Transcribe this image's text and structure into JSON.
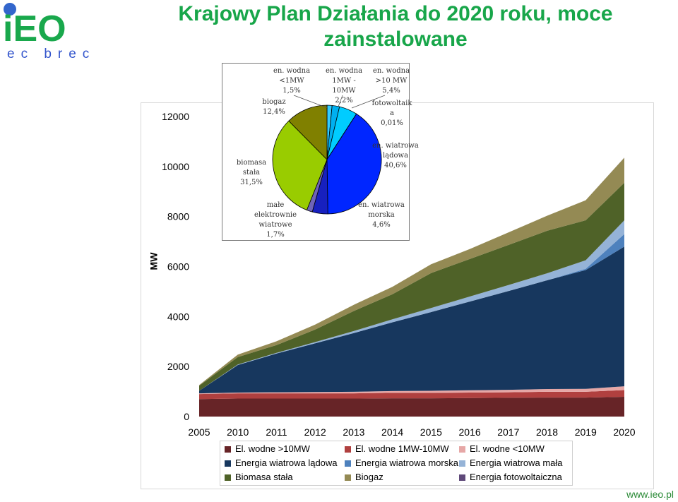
{
  "header": {
    "title": "Krajowy Plan Działania do 2020 roku, moce zainstalowane",
    "logo_main": "iEO",
    "logo_sub": "ec brec"
  },
  "footer": {
    "url": "www.ieo.pl"
  },
  "chart_data": [
    {
      "type": "area",
      "stacked": true,
      "ylabel": "MW",
      "ylim": [
        0,
        12000
      ],
      "yticks": [
        "0",
        "2000",
        "4000",
        "6000",
        "8000",
        "10000",
        "12000"
      ],
      "categories": [
        "2005",
        "2010",
        "2011",
        "2012",
        "2013",
        "2014",
        "2015",
        "2016",
        "2017",
        "2018",
        "2019",
        "2020"
      ],
      "legend_position": "bottom",
      "series": [
        {
          "name": "El. wodne >10MW",
          "color": "#672427",
          "values": [
            700,
            720,
            720,
            720,
            720,
            730,
            730,
            740,
            750,
            760,
            760,
            790
          ]
        },
        {
          "name": "El. wodne 1MW-10MW",
          "color": "#b0403f",
          "values": [
            200,
            210,
            210,
            210,
            210,
            220,
            220,
            220,
            220,
            230,
            230,
            270
          ]
        },
        {
          "name": "El. wodne <10MW",
          "color": "#e6a7a6",
          "values": [
            30,
            30,
            40,
            50,
            60,
            70,
            80,
            90,
            100,
            110,
            120,
            150
          ]
        },
        {
          "name": "Energia wiatrowa lądowa",
          "color": "#17375e",
          "values": [
            100,
            1100,
            1550,
            1950,
            2350,
            2750,
            3150,
            3550,
            3950,
            4350,
            4750,
            5590
          ]
        },
        {
          "name": "Energia wiatrowa morska",
          "color": "#4e81bd",
          "values": [
            0,
            0,
            0,
            0,
            0,
            0,
            0,
            0,
            0,
            0,
            50,
            500
          ]
        },
        {
          "name": "Energia wiatrowa mała",
          "color": "#95b3d7",
          "values": [
            0,
            20,
            30,
            50,
            80,
            120,
            160,
            200,
            240,
            280,
            340,
            550
          ]
        },
        {
          "name": "Biomasa stała",
          "color": "#4f6228",
          "values": [
            200,
            300,
            310,
            500,
            800,
            1000,
            1400,
            1500,
            1600,
            1700,
            1600,
            1500
          ]
        },
        {
          "name": "Biogaz",
          "color": "#948a54",
          "values": [
            30,
            100,
            150,
            200,
            250,
            300,
            350,
            400,
            500,
            600,
            800,
            1000
          ]
        },
        {
          "name": "Energia fotowoltaiczna",
          "color": "#5f497a",
          "values": [
            0,
            0,
            0,
            0,
            0,
            0,
            0,
            0,
            0,
            0,
            0,
            3
          ]
        }
      ]
    },
    {
      "type": "pie",
      "slices": [
        {
          "label": "en. wiatrowa lądowa\n40,6%",
          "value": 40.6,
          "color": "#0026ff"
        },
        {
          "label": "en. wiatrowa morska\n4,6%",
          "value": 4.6,
          "color": "#1720bf"
        },
        {
          "label": "małe elektrownie wiatrowe\n1,7%",
          "value": 1.7,
          "color": "#6f64b8"
        },
        {
          "label": "biomasa stała\n31,5%",
          "value": 31.5,
          "color": "#99cc00"
        },
        {
          "label": "biogaz\n12,4%",
          "value": 12.4,
          "color": "#808000"
        },
        {
          "label": "en. wodna <1MW\n1,5%",
          "value": 1.5,
          "color": "#33ccff"
        },
        {
          "label": "en. wodna 1MW - 10MW\n2,2%",
          "value": 2.2,
          "color": "#00b0f0"
        },
        {
          "label": "en. wodna >10 MW\n5,4%",
          "value": 5.4,
          "color": "#00ccff"
        },
        {
          "label": "fotowoltaik a\n0,01%",
          "value": 0.01,
          "color": "#339966"
        }
      ]
    }
  ]
}
